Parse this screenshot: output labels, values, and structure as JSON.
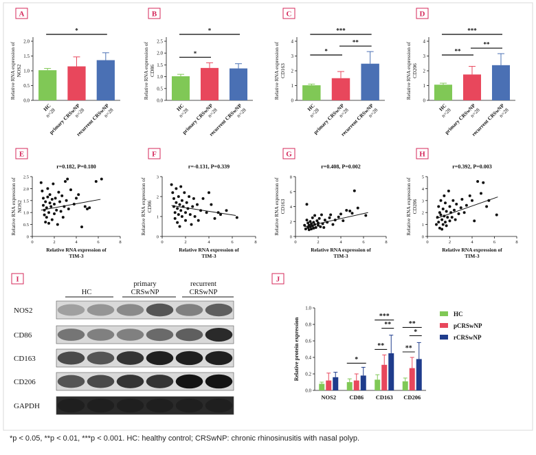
{
  "colors": {
    "frame": "#d8d8d8",
    "panel_label_border": "#d4275a",
    "panel_label_text": "#d4275a",
    "hc": "#80c856",
    "primary": "#e8475c",
    "recurrent": "#4a70b4",
    "rcrs": "#1f3c8c",
    "significance": "#000000"
  },
  "panel_labels": [
    "A",
    "B",
    "C",
    "D",
    "E",
    "F",
    "G",
    "H",
    "I",
    "J"
  ],
  "caption": "*p < 0.05, **p < 0.01, ***p < 0.001. HC: healthy control; CRSwNP: chronic rhinosinusitis with nasal polyp.",
  "chart_data": [
    {
      "panel": "A",
      "type": "bar",
      "categories": [
        "HC\nn=28",
        "primary CRSwNP\nn=28",
        "recurrent CRSwNP\nn=28"
      ],
      "values": [
        1.02,
        1.15,
        1.36
      ],
      "errors": [
        0.06,
        0.32,
        0.25
      ],
      "ylabel": "Relative RNA expression of NOS2",
      "ylim": [
        0,
        2.0
      ],
      "yticks": [
        0,
        0.5,
        1.0,
        1.5,
        2.0
      ],
      "ytick_labels": [
        "0.0",
        "0.5",
        "1.0",
        "1.5",
        "2.0"
      ],
      "significance": [
        {
          "from": 0,
          "to": 2,
          "label": "*"
        }
      ]
    },
    {
      "panel": "B",
      "type": "bar",
      "categories": [
        "HC\nn=28",
        "primary CRSwNP\nn=28",
        "recurrent CRSwNP\nn=28"
      ],
      "values": [
        1.02,
        1.37,
        1.35
      ],
      "errors": [
        0.08,
        0.22,
        0.2
      ],
      "ylabel": "Relative RNA expression of CD86",
      "ylim": [
        0,
        2.5
      ],
      "yticks": [
        0,
        0.5,
        1.0,
        1.5,
        2.0,
        2.5
      ],
      "ytick_labels": [
        "0.0",
        "0.5",
        "1.0",
        "1.5",
        "2.0",
        "2.5"
      ],
      "significance": [
        {
          "from": 0,
          "to": 1,
          "label": "*"
        },
        {
          "from": 0,
          "to": 2,
          "label": "*"
        }
      ]
    },
    {
      "panel": "C",
      "type": "bar",
      "categories": [
        "HC\nn=28",
        "primary CRSwNP\nn=28",
        "recurrent CRSwNP\nn=28"
      ],
      "values": [
        1.02,
        1.5,
        2.48
      ],
      "errors": [
        0.08,
        0.45,
        0.82
      ],
      "ylabel": "Relative RNA expression of CD163",
      "ylim": [
        0,
        4
      ],
      "yticks": [
        0,
        1,
        2,
        3,
        4
      ],
      "ytick_labels": [
        "0",
        "1",
        "2",
        "3",
        "4"
      ],
      "significance": [
        {
          "from": 0,
          "to": 1,
          "label": "*"
        },
        {
          "from": 1,
          "to": 2,
          "label": "**"
        },
        {
          "from": 0,
          "to": 2,
          "label": "***"
        }
      ]
    },
    {
      "panel": "D",
      "type": "bar",
      "categories": [
        "HC\nn=28",
        "primary CRSwNP\nn=28",
        "recurrent CRSwNP\nn=28"
      ],
      "values": [
        1.06,
        1.75,
        2.38
      ],
      "errors": [
        0.1,
        0.55,
        0.78
      ],
      "ylabel": "Relative RNA expression of CD206",
      "ylim": [
        0,
        4
      ],
      "yticks": [
        0,
        1,
        2,
        3,
        4
      ],
      "ytick_labels": [
        "0",
        "1",
        "2",
        "3",
        "4"
      ],
      "significance": [
        {
          "from": 0,
          "to": 1,
          "label": "**"
        },
        {
          "from": 1,
          "to": 2,
          "label": "**"
        },
        {
          "from": 0,
          "to": 2,
          "label": "***"
        }
      ]
    },
    {
      "panel": "E",
      "type": "scatter",
      "annotation": "r=0.182, P=0.180",
      "xlabel": "Relative RNA expression of TIM-3",
      "ylabel": "Relative RNA expression of NOS2",
      "xlim": [
        0,
        8
      ],
      "xticks": [
        0,
        2,
        4,
        6,
        8
      ],
      "ylim": [
        0,
        2.5
      ],
      "yticks": [
        0,
        0.5,
        1.0,
        1.5,
        2.0,
        2.5
      ],
      "ytick_labels": [
        "0",
        "0.5",
        "1.0",
        "1.5",
        "2.0",
        "2.5"
      ],
      "trend": [
        [
          0.8,
          1.1
        ],
        [
          6.2,
          1.55
        ]
      ],
      "points": [
        [
          0.8,
          2.25
        ],
        [
          0.9,
          1.9
        ],
        [
          1.0,
          1.6
        ],
        [
          1.0,
          1.3
        ],
        [
          1.1,
          1.1
        ],
        [
          1.1,
          0.9
        ],
        [
          1.2,
          0.6
        ],
        [
          1.2,
          1.45
        ],
        [
          1.3,
          1.2
        ],
        [
          1.3,
          0.8
        ],
        [
          1.4,
          2.0
        ],
        [
          1.4,
          1.65
        ],
        [
          1.5,
          1.0
        ],
        [
          1.5,
          0.55
        ],
        [
          1.6,
          1.4
        ],
        [
          1.6,
          1.75
        ],
        [
          1.7,
          1.25
        ],
        [
          1.8,
          0.7
        ],
        [
          1.8,
          1.55
        ],
        [
          1.9,
          2.2
        ],
        [
          2.0,
          1.35
        ],
        [
          2.0,
          0.95
        ],
        [
          2.1,
          1.6
        ],
        [
          2.2,
          1.1
        ],
        [
          2.3,
          0.5
        ],
        [
          2.4,
          1.85
        ],
        [
          2.5,
          1.45
        ],
        [
          2.6,
          1.05
        ],
        [
          2.7,
          1.7
        ],
        [
          2.8,
          0.8
        ],
        [
          2.9,
          1.25
        ],
        [
          3.0,
          2.3
        ],
        [
          3.1,
          1.5
        ],
        [
          3.2,
          2.4
        ],
        [
          3.3,
          1.15
        ],
        [
          3.5,
          1.95
        ],
        [
          3.8,
          1.35
        ],
        [
          4.0,
          1.6
        ],
        [
          4.2,
          1.75
        ],
        [
          4.5,
          0.4
        ],
        [
          4.8,
          1.25
        ],
        [
          5.0,
          1.15
        ],
        [
          5.2,
          1.2
        ],
        [
          5.8,
          2.3
        ],
        [
          6.3,
          2.4
        ]
      ]
    },
    {
      "panel": "F",
      "type": "scatter",
      "annotation": "r=-0.131, P=0.339",
      "xlabel": "Relative RNA expression of TIM-3",
      "ylabel": "Relative RNA expression of CD86",
      "xlim": [
        0,
        8
      ],
      "xticks": [
        0,
        2,
        4,
        6,
        8
      ],
      "ylim": [
        0,
        3
      ],
      "yticks": [
        0,
        1,
        2,
        3
      ],
      "ytick_labels": [
        "0",
        "1",
        "2",
        "3"
      ],
      "trend": [
        [
          0.8,
          1.55
        ],
        [
          6.3,
          1.05
        ]
      ],
      "points": [
        [
          0.8,
          2.6
        ],
        [
          0.9,
          2.2
        ],
        [
          1.0,
          1.9
        ],
        [
          1.0,
          1.5
        ],
        [
          1.1,
          1.2
        ],
        [
          1.1,
          0.9
        ],
        [
          1.2,
          2.4
        ],
        [
          1.2,
          1.7
        ],
        [
          1.3,
          1.4
        ],
        [
          1.3,
          0.7
        ],
        [
          1.4,
          2.0
        ],
        [
          1.4,
          1.1
        ],
        [
          1.5,
          1.6
        ],
        [
          1.5,
          0.5
        ],
        [
          1.6,
          2.5
        ],
        [
          1.6,
          1.3
        ],
        [
          1.7,
          1.8
        ],
        [
          1.7,
          1.0
        ],
        [
          1.8,
          1.5
        ],
        [
          1.9,
          2.2
        ],
        [
          2.0,
          1.2
        ],
        [
          2.0,
          0.8
        ],
        [
          2.1,
          1.7
        ],
        [
          2.2,
          1.4
        ],
        [
          2.3,
          2.0
        ],
        [
          2.4,
          1.1
        ],
        [
          2.5,
          0.6
        ],
        [
          2.6,
          1.5
        ],
        [
          2.7,
          1.9
        ],
        [
          2.8,
          1.0
        ],
        [
          3.0,
          1.6
        ],
        [
          3.1,
          0.8
        ],
        [
          3.3,
          1.3
        ],
        [
          3.5,
          1.9
        ],
        [
          3.8,
          1.2
        ],
        [
          4.0,
          2.2
        ],
        [
          4.2,
          1.6
        ],
        [
          4.5,
          0.9
        ],
        [
          4.8,
          1.2
        ],
        [
          5.0,
          1.1
        ],
        [
          5.5,
          1.3
        ],
        [
          6.4,
          0.95
        ]
      ]
    },
    {
      "panel": "G",
      "type": "scatter",
      "annotation": "r=0.408, P=0.002",
      "xlabel": "Relative RNA expression of TIM-3",
      "ylabel": "Relative RNA expression of CD163",
      "xlim": [
        0,
        8
      ],
      "xticks": [
        0,
        2,
        4,
        6,
        8
      ],
      "ylim": [
        0,
        8
      ],
      "yticks": [
        0,
        2,
        4,
        6,
        8
      ],
      "ytick_labels": [
        "0",
        "2",
        "4",
        "6",
        "8"
      ],
      "trend": [
        [
          0.8,
          1.3
        ],
        [
          6.4,
          3.2
        ]
      ],
      "points": [
        [
          0.8,
          1.5
        ],
        [
          0.9,
          1.0
        ],
        [
          1.0,
          4.3
        ],
        [
          1.0,
          2.2
        ],
        [
          1.1,
          1.8
        ],
        [
          1.1,
          1.2
        ],
        [
          1.2,
          1.5
        ],
        [
          1.2,
          0.9
        ],
        [
          1.3,
          2.0
        ],
        [
          1.3,
          1.3
        ],
        [
          1.4,
          1.7
        ],
        [
          1.4,
          1.0
        ],
        [
          1.5,
          2.5
        ],
        [
          1.5,
          1.4
        ],
        [
          1.6,
          1.9
        ],
        [
          1.6,
          1.1
        ],
        [
          1.7,
          2.8
        ],
        [
          1.7,
          1.6
        ],
        [
          1.8,
          1.2
        ],
        [
          1.9,
          2.1
        ],
        [
          2.0,
          1.5
        ],
        [
          2.0,
          1.8
        ],
        [
          2.1,
          2.4
        ],
        [
          2.2,
          1.3
        ],
        [
          2.3,
          2.9
        ],
        [
          2.4,
          1.7
        ],
        [
          2.5,
          1.2
        ],
        [
          2.6,
          2.2
        ],
        [
          2.8,
          1.9
        ],
        [
          3.0,
          2.5
        ],
        [
          3.1,
          2.9
        ],
        [
          3.3,
          1.6
        ],
        [
          3.5,
          2.2
        ],
        [
          3.8,
          2.6
        ],
        [
          4.0,
          3.0
        ],
        [
          4.2,
          2.1
        ],
        [
          4.5,
          3.5
        ],
        [
          4.8,
          3.4
        ],
        [
          5.0,
          3.1
        ],
        [
          5.2,
          6.1
        ],
        [
          5.5,
          3.8
        ],
        [
          6.2,
          2.8
        ]
      ]
    },
    {
      "panel": "H",
      "type": "scatter",
      "annotation": "r=0.392, P=0.003",
      "xlabel": "Relative RNA expression of TIM-3",
      "ylabel": "Relative RNA expression of CD206",
      "xlim": [
        0,
        8
      ],
      "xticks": [
        0,
        2,
        4,
        6,
        8
      ],
      "ylim": [
        0,
        5
      ],
      "yticks": [
        0,
        1,
        2,
        3,
        4,
        5
      ],
      "ytick_labels": [
        "0",
        "1",
        "2",
        "3",
        "4",
        "5"
      ],
      "trend": [
        [
          0.8,
          1.5
        ],
        [
          6.3,
          3.3
        ]
      ],
      "points": [
        [
          0.8,
          1.0
        ],
        [
          0.9,
          1.6
        ],
        [
          1.0,
          2.5
        ],
        [
          1.0,
          1.2
        ],
        [
          1.1,
          2.0
        ],
        [
          1.1,
          0.7
        ],
        [
          1.2,
          3.0
        ],
        [
          1.2,
          1.8
        ],
        [
          1.3,
          1.4
        ],
        [
          1.3,
          0.6
        ],
        [
          1.4,
          2.3
        ],
        [
          1.4,
          1.0
        ],
        [
          1.5,
          3.4
        ],
        [
          1.5,
          1.7
        ],
        [
          1.6,
          2.8
        ],
        [
          1.6,
          1.2
        ],
        [
          1.7,
          2.1
        ],
        [
          1.7,
          0.9
        ],
        [
          1.8,
          1.6
        ],
        [
          1.9,
          3.8
        ],
        [
          2.0,
          2.5
        ],
        [
          2.0,
          1.3
        ],
        [
          2.1,
          2.0
        ],
        [
          2.2,
          1.6
        ],
        [
          2.3,
          3.0
        ],
        [
          2.4,
          2.2
        ],
        [
          2.5,
          1.4
        ],
        [
          2.6,
          2.7
        ],
        [
          2.8,
          1.9
        ],
        [
          3.0,
          2.4
        ],
        [
          3.1,
          3.1
        ],
        [
          3.3,
          2.0
        ],
        [
          3.5,
          2.6
        ],
        [
          3.8,
          3.4
        ],
        [
          4.0,
          3.0
        ],
        [
          4.2,
          1.3
        ],
        [
          4.5,
          4.6
        ],
        [
          4.8,
          3.6
        ],
        [
          5.0,
          4.5
        ],
        [
          5.3,
          2.5
        ],
        [
          5.5,
          3.0
        ],
        [
          6.2,
          1.8
        ]
      ]
    },
    {
      "panel": "J",
      "type": "bar",
      "categories": [
        "NOS2",
        "CD86",
        "CD163",
        "CD206"
      ],
      "series": [
        {
          "name": "HC",
          "values": [
            0.08,
            0.1,
            0.13,
            0.11
          ],
          "errors": [
            0.02,
            0.04,
            0.06,
            0.04
          ]
        },
        {
          "name": "pCRSwNP",
          "values": [
            0.12,
            0.12,
            0.31,
            0.27
          ],
          "errors": [
            0.09,
            0.08,
            0.12,
            0.13
          ]
        },
        {
          "name": "rCRSwNP",
          "values": [
            0.16,
            0.18,
            0.45,
            0.38
          ],
          "errors": [
            0.06,
            0.1,
            0.22,
            0.2
          ]
        }
      ],
      "ylabel": "Relative protein expression",
      "ylim": [
        0,
        1.0
      ],
      "yticks": [
        0,
        0.2,
        0.4,
        0.6,
        0.8,
        1.0
      ],
      "ytick_labels": [
        "0.0",
        "0.2",
        "0.4",
        "0.6",
        "0.8",
        "1.0"
      ],
      "legend_position": "right",
      "significance": [
        {
          "category": 1,
          "from": 0,
          "to": 2,
          "label": "*"
        },
        {
          "category": 2,
          "from": 0,
          "to": 1,
          "label": "**"
        },
        {
          "category": 2,
          "from": 1,
          "to": 2,
          "label": "**"
        },
        {
          "category": 2,
          "from": 0,
          "to": 2,
          "label": "***"
        },
        {
          "category": 3,
          "from": 0,
          "to": 1,
          "label": "**"
        },
        {
          "category": 3,
          "from": 1,
          "to": 2,
          "label": "*"
        },
        {
          "category": 3,
          "from": 0,
          "to": 2,
          "label": "**"
        }
      ]
    }
  ],
  "western_blot": {
    "group_labels": [
      {
        "lines": [
          "HC"
        ]
      },
      {
        "lines": [
          "primary",
          "CRSwNP"
        ]
      },
      {
        "lines": [
          "recurrent",
          "CRSwNP"
        ]
      }
    ],
    "rows": [
      {
        "name": "NOS2",
        "lanes": [
          0.35,
          0.4,
          0.45,
          0.7,
          0.5,
          0.65
        ]
      },
      {
        "name": "CD86",
        "lanes": [
          0.55,
          0.5,
          0.5,
          0.6,
          0.65,
          0.9
        ]
      },
      {
        "name": "CD163",
        "lanes": [
          0.75,
          0.7,
          0.85,
          0.95,
          0.95,
          0.95
        ]
      },
      {
        "name": "CD206",
        "lanes": [
          0.7,
          0.75,
          0.85,
          0.85,
          1.0,
          1.0
        ]
      },
      {
        "name": "GAPDH",
        "lanes": [
          0.95,
          0.95,
          0.95,
          0.95,
          0.95,
          0.95
        ]
      }
    ]
  }
}
